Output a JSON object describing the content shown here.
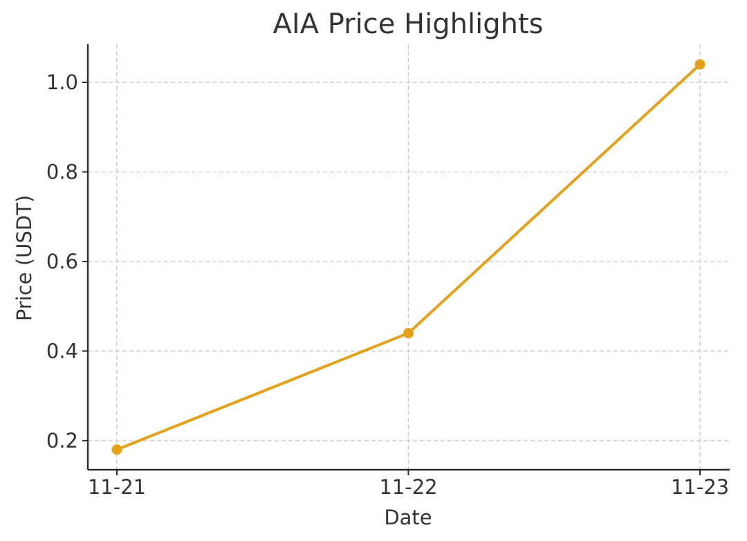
{
  "chart_data": {
    "type": "line",
    "title": "AIA Price Highlights",
    "xlabel": "Date",
    "ylabel": "Price (USDT)",
    "categories": [
      "11-21",
      "11-22",
      "11-23"
    ],
    "series": [
      {
        "values": [
          0.18,
          0.44,
          1.04
        ],
        "color": "#E5A11A"
      }
    ],
    "ylim": [
      0.135,
      1.085
    ],
    "yticks": [
      0.2,
      0.4,
      0.6,
      0.8,
      1.0
    ],
    "ytick_labels": [
      "0.2",
      "0.4",
      "0.6",
      "0.8",
      "1.0"
    ],
    "grid": true,
    "marker": "circle"
  }
}
